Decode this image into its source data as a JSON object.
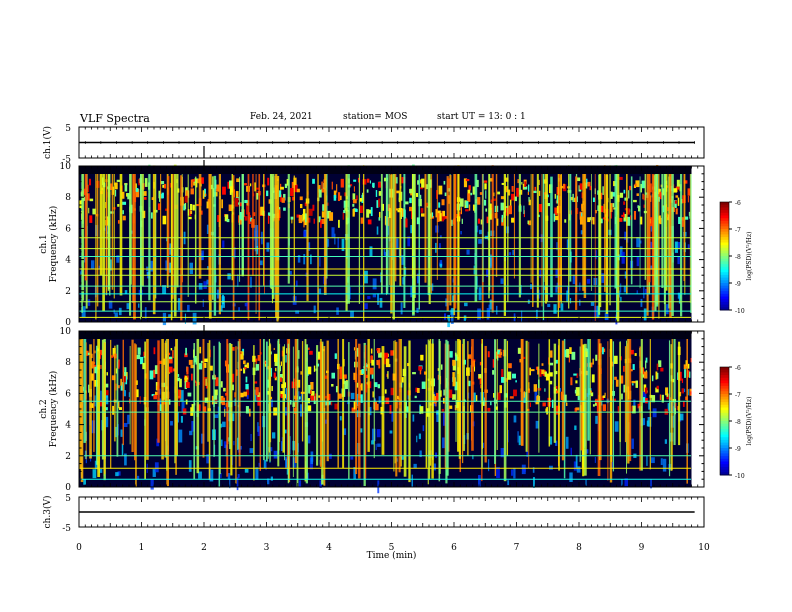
{
  "header": {
    "title": "VLF Spectra",
    "date": "Feb. 24, 2021",
    "station": "station= MOS",
    "start": "start  UT =  13: 0  : 1"
  },
  "chart_data": [
    {
      "type": "line",
      "title": "",
      "ylabel": "ch.1(V)",
      "xlim": [
        0,
        10
      ],
      "ylim": [
        -5,
        5
      ],
      "yticks": [
        "5",
        "-5"
      ],
      "series": [
        {
          "x": [
            0,
            9.85
          ],
          "values": [
            0,
            0
          ]
        }
      ]
    },
    {
      "type": "heatmap",
      "ylabel": "ch.1\nFrequency (kHz)",
      "ylabel_lines": [
        "ch.1",
        "Frequency (kHz)"
      ],
      "xlim": [
        0,
        10
      ],
      "ylim": [
        0,
        10
      ],
      "yticks": [
        "0",
        "2",
        "4",
        "6",
        "8",
        "10"
      ],
      "colorbar": {
        "label": "log(PSD)(V²/Hz)",
        "range": [
          -10,
          -6
        ],
        "ticks": [
          "-6",
          "-7",
          "-8",
          "-9",
          "-10"
        ]
      },
      "band_khz": [
        6.5,
        9.3
      ]
    },
    {
      "type": "heatmap",
      "ylabel_lines": [
        "ch.2",
        "Frequency (kHz)"
      ],
      "xlim": [
        0,
        10
      ],
      "ylim": [
        0,
        10
      ],
      "yticks": [
        "0",
        "2",
        "4",
        "6",
        "8",
        "10"
      ],
      "colorbar": {
        "label": "log(PSD)(V²/Hz)",
        "range": [
          -10,
          -6
        ],
        "ticks": [
          "-6",
          "-7",
          "-8",
          "-9",
          "-10"
        ]
      },
      "band_khz": [
        5.0,
        9.0
      ]
    },
    {
      "type": "line",
      "ylabel": "ch.3(V)",
      "xlim": [
        0,
        10
      ],
      "ylim": [
        -5,
        5
      ],
      "yticks": [
        "5",
        "-5"
      ],
      "xlabel": "Time (min)",
      "xticks": [
        "0",
        "1",
        "2",
        "3",
        "4",
        "5",
        "6",
        "7",
        "8",
        "9",
        "10"
      ],
      "series": [
        {
          "x": [
            0,
            9.85
          ],
          "values": [
            0,
            0
          ]
        }
      ]
    }
  ],
  "colors": {
    "background": "#ffffff",
    "axis": "#000000",
    "spectrogram_bg": "#000033"
  }
}
